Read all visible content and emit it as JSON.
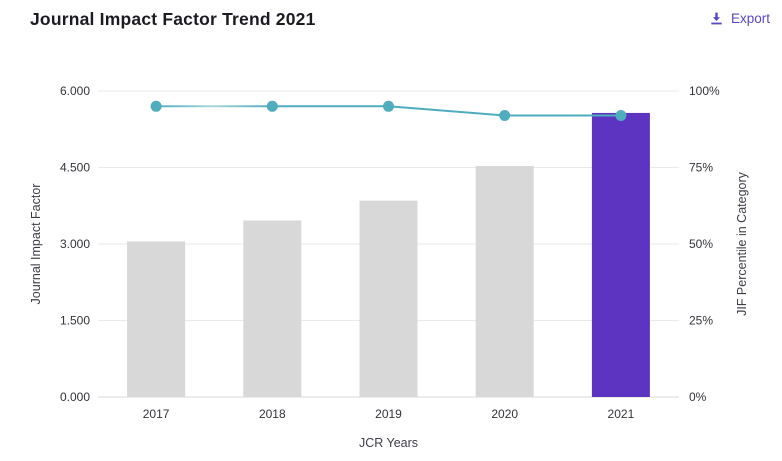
{
  "header": {
    "title": "Journal Impact Factor Trend 2021",
    "export_label": "Export"
  },
  "chart_data": {
    "type": "bar",
    "title": "Journal Impact Factor Trend 2021",
    "categories": [
      "2017",
      "2018",
      "2019",
      "2020",
      "2021"
    ],
    "series": [
      {
        "name": "Journal Impact Factor",
        "type": "bar",
        "axis": "left",
        "values": [
          3.05,
          3.46,
          3.85,
          4.53,
          5.57
        ]
      },
      {
        "name": "JIF Percentile in Category",
        "type": "line",
        "axis": "right",
        "values": [
          95,
          95,
          95,
          92,
          92
        ]
      }
    ],
    "xlabel": "JCR Years",
    "ylabel_left": "Journal Impact Factor",
    "ylabel_right": "JIF Percentile in Category",
    "ylim_left": [
      0,
      6
    ],
    "ylim_right": [
      0,
      100
    ],
    "yticks_left": [
      "0.000",
      "1.500",
      "3.000",
      "4.500",
      "6.000"
    ],
    "yticks_right": [
      "0%",
      "25%",
      "50%",
      "75%",
      "100%"
    ],
    "highlight_category": "2021",
    "grid": true,
    "legend": "none",
    "colors": {
      "bar": "#d8d8d8",
      "bar_highlight": "#5d34c1",
      "line": "#4fadbe",
      "line_soft": "#a9d6dd",
      "grid": "#eaeaec",
      "axis_line": "#d9d9db",
      "accent": "#5847c9"
    }
  }
}
